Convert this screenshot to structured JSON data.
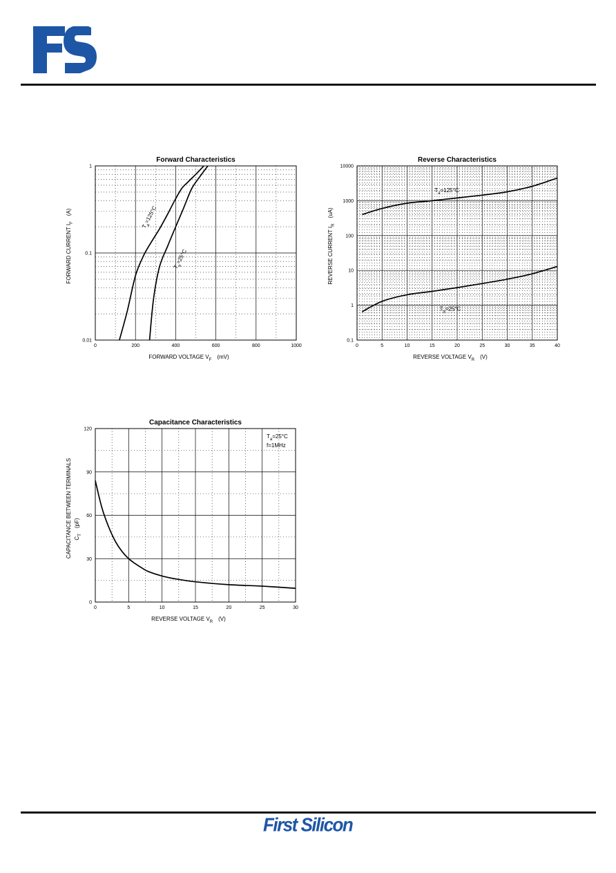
{
  "header": {
    "logo_icon": "fs-logo-icon",
    "logo_color": "#1e56a6"
  },
  "footer": {
    "brand": "First Silicon",
    "brand_color": "#1e56a6"
  },
  "chart_data": [
    {
      "type": "line",
      "title": "Forward  Characteristics",
      "xlabel": {
        "main": "FORWARD VOLTAGE    V",
        "sub": "F",
        "unit": "(mV)"
      },
      "ylabel": {
        "main": "FORWARD CURRENT    I",
        "sub": "F",
        "unit": "(A)"
      },
      "xlim": [
        0,
        1000
      ],
      "ylim": [
        0.01,
        1
      ],
      "yscale": "log",
      "xticks": [
        "0",
        "200",
        "400",
        "600",
        "800",
        "1000"
      ],
      "yticks": [
        "0.01",
        "0.1",
        "1"
      ],
      "grid": true,
      "series": [
        {
          "name": "T =125°C",
          "label_main": "T",
          "label_sub": "a",
          "label_rest": "=125°C",
          "x": [
            120,
            160,
            200,
            240,
            280,
            320,
            360,
            400,
            430,
            460,
            500,
            540
          ],
          "y": [
            0.01,
            0.022,
            0.055,
            0.093,
            0.135,
            0.19,
            0.28,
            0.42,
            0.55,
            0.65,
            0.8,
            1.0
          ]
        },
        {
          "name": "T =25°C",
          "label_main": "T",
          "label_sub": "a",
          "label_rest": "=25°C",
          "x": [
            270,
            290,
            320,
            360,
            400,
            440,
            480,
            520,
            560
          ],
          "y": [
            0.01,
            0.03,
            0.07,
            0.12,
            0.2,
            0.33,
            0.55,
            0.75,
            1.0
          ]
        }
      ]
    },
    {
      "type": "line",
      "title": "Reverse  Characteristics",
      "xlabel": {
        "main": "REVERSE VOLTAGE    V",
        "sub": "R",
        "unit": "(V)"
      },
      "ylabel": {
        "main": "REVERSE CURRENT    I",
        "sub": "R",
        "unit": "(uA)"
      },
      "xlim": [
        0,
        40
      ],
      "ylim": [
        0.1,
        10000
      ],
      "yscale": "log",
      "xticks": [
        "0",
        "5",
        "10",
        "15",
        "20",
        "25",
        "30",
        "35",
        "40"
      ],
      "yticks": [
        "0.1",
        "1",
        "10",
        "100",
        "1000",
        "10000"
      ],
      "grid": true,
      "series": [
        {
          "name": "T =125°C",
          "label_main": "T",
          "label_sub": "a",
          "label_rest": "=125°C",
          "x": [
            1,
            5,
            10,
            15,
            20,
            25,
            30,
            35,
            40
          ],
          "y": [
            400,
            600,
            850,
            1000,
            1200,
            1450,
            1800,
            2600,
            4500
          ]
        },
        {
          "name": "T =25°C",
          "label_main": "T",
          "label_sub": "a",
          "label_rest": "=25°C",
          "x": [
            1,
            5,
            10,
            15,
            20,
            25,
            30,
            35,
            40
          ],
          "y": [
            0.65,
            1.3,
            2.0,
            2.5,
            3.2,
            4.2,
            5.6,
            8.0,
            13
          ]
        }
      ]
    },
    {
      "type": "line",
      "title": "Capacitance Characteristics",
      "xlabel": {
        "main": "REVERSE VOLTAGE    V",
        "sub": "R",
        "unit": "(V)"
      },
      "ylabel": {
        "main": "CAPACITANCE BETWEEN TERMINALS",
        "line2_main": "C",
        "line2_sub": "T",
        "unit": "(pF)"
      },
      "xlim": [
        0,
        30
      ],
      "ylim": [
        0,
        120
      ],
      "yscale": "linear",
      "xticks": [
        "0",
        "5",
        "10",
        "15",
        "20",
        "25",
        "30"
      ],
      "yticks": [
        "0",
        "30",
        "60",
        "90",
        "120"
      ],
      "grid": true,
      "annotation": {
        "line1_main": "T",
        "line1_sub": "a",
        "line1_rest": "=25°C",
        "line2": "f=1MHz"
      },
      "series": [
        {
          "name": "",
          "x": [
            0,
            1,
            2,
            3,
            4,
            5,
            6,
            7,
            8,
            10,
            12,
            15,
            20,
            25,
            30
          ],
          "y": [
            84,
            65,
            52,
            42,
            35,
            30,
            26.5,
            23.5,
            21,
            18,
            16,
            14,
            12,
            11,
            9.5
          ]
        }
      ]
    }
  ]
}
